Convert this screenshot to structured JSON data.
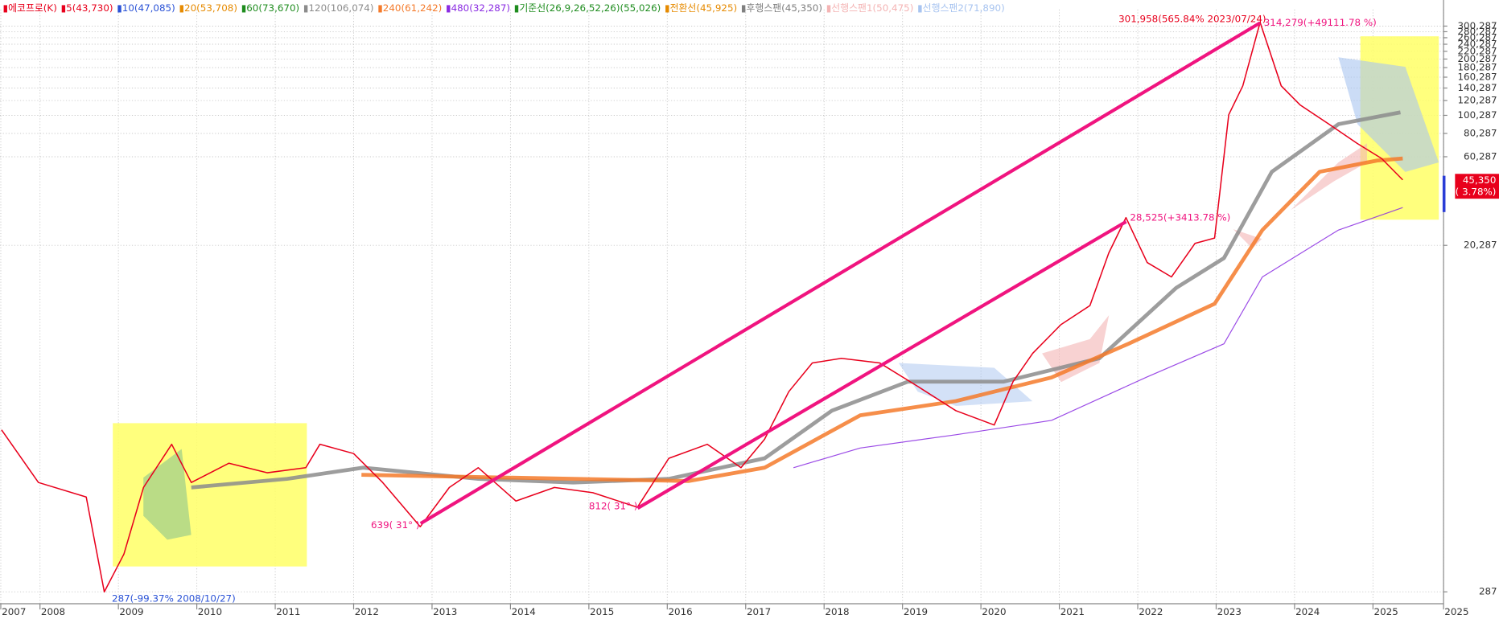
{
  "chart_data": {
    "type": "line",
    "log_scale": true,
    "grid": true,
    "xlim": [
      2007.49,
      2025.9
    ],
    "ylim": [
      248,
      368000
    ],
    "xticks": [
      {
        "value": 2007.5,
        "label": "2007"
      },
      2008,
      2009,
      2010,
      2011,
      2012,
      2013,
      2014,
      2015,
      2016,
      2017,
      2018,
      2019,
      2020,
      2021,
      2022,
      2023,
      2024,
      2025,
      {
        "value": 2025.9,
        "label": "2025"
      }
    ],
    "yticks": [
      {
        "value": 300287,
        "label": "300,287"
      },
      {
        "value": 280287,
        "label": "280,287"
      },
      {
        "value": 260287,
        "label": "260,287"
      },
      {
        "value": 240287,
        "label": "240,287"
      },
      {
        "value": 220287,
        "label": "220,287"
      },
      {
        "value": 200287,
        "label": "200,287"
      },
      {
        "value": 180287,
        "label": "180,287"
      },
      {
        "value": 160287,
        "label": "160,287"
      },
      {
        "value": 140287,
        "label": "140,287"
      },
      {
        "value": 120287,
        "label": "120,287"
      },
      {
        "value": 100287,
        "label": "100,287"
      },
      {
        "value": 80287,
        "label": "80,287"
      },
      {
        "value": 60287,
        "label": "60,287"
      },
      {
        "value": 20287,
        "label": "20,287"
      },
      287
    ],
    "series": [
      {
        "name": "▮에코프로(K)",
        "color": "#e8001c",
        "x": [
          2007.51,
          2007.98,
          2008.59,
          2008.82,
          2009.07,
          2009.32,
          2009.68,
          2009.93,
          2010.41,
          2010.9,
          2011.39,
          2011.57,
          2012.0,
          2012.37,
          2012.85,
          2013.22,
          2013.59,
          2014.07,
          2014.56,
          2015.05,
          2015.62,
          2016.02,
          2016.51,
          2016.94,
          2017.24,
          2017.55,
          2017.85,
          2018.22,
          2018.71,
          2019.2,
          2019.68,
          2020.17,
          2020.41,
          2020.66,
          2021.02,
          2021.39,
          2021.63,
          2021.85,
          2022.12,
          2022.43,
          2022.73,
          2022.98,
          2023.16,
          2023.34,
          2023.56,
          2023.83,
          2024.07,
          2024.44,
          2024.8,
          2025.11,
          2025.38
        ],
        "values": [
          2100,
          1100,
          920,
          287,
          456,
          1035,
          1760,
          1100,
          1395,
          1240,
          1320,
          1760,
          1570,
          1100,
          639,
          1035,
          1320,
          876,
          1035,
          970,
          812,
          1480,
          1760,
          1320,
          1870,
          3360,
          4780,
          5060,
          4780,
          3570,
          2660,
          2230,
          3800,
          5380,
          7650,
          9680,
          18460,
          28525,
          16430,
          13770,
          20770,
          22200,
          101000,
          144000,
          314279,
          144000,
          114000,
          90000,
          71000,
          59000,
          45350
        ]
      },
      {
        "name": "▮120(106,074)",
        "color": "#8c8c8c",
        "x": [
          2009.93,
          2011.15,
          2012.12,
          2013.59,
          2014.8,
          2016.02,
          2017.24,
          2018.1,
          2019.07,
          2020.29,
          2021.51,
          2022.49,
          2023.1,
          2023.71,
          2024.56,
          2025.35
        ],
        "values": [
          1035,
          1150,
          1320,
          1150,
          1100,
          1150,
          1480,
          2660,
          3800,
          3800,
          5060,
          12020,
          17340,
          50100,
          90000,
          104000
        ]
      },
      {
        "name": "▮240(61,242)",
        "color": "#f47a2a",
        "x": [
          2012.1,
          2014.8,
          2016.27,
          2017.24,
          2018.46,
          2019.68,
          2020.9,
          2021.88,
          2022.98,
          2023.59,
          2024.32,
          2025.05,
          2025.38
        ],
        "values": [
          1210,
          1150,
          1120,
          1320,
          2510,
          2990,
          4000,
          6050,
          9900,
          24500,
          50100,
          57500,
          59000
        ]
      },
      {
        "name": "▮480(32,287)",
        "color": "#8a2be2",
        "x": [
          2017.61,
          2018.46,
          2019.68,
          2020.9,
          2022.12,
          2023.1,
          2023.59,
          2024.56,
          2025.38
        ],
        "values": [
          1320,
          1680,
          1980,
          2360,
          4030,
          6050,
          13770,
          24500,
          32287
        ]
      }
    ],
    "other_indicators": [
      {
        "name": "▮5(43,730)",
        "color": "#e8001c"
      },
      {
        "name": "▮10(47,085)",
        "color": "#2a52d6"
      },
      {
        "name": "▮20(53,708)",
        "color": "#e68a00"
      },
      {
        "name": "▮60(73,670)",
        "color": "#1e8c1e"
      },
      {
        "name": "▮기준선(26,9,26,52,26)(55,026)",
        "color": "#1e8c1e"
      },
      {
        "name": "▮전환선(45,925)",
        "color": "#e68a00"
      },
      {
        "name": "▮후행스팬(45,350)",
        "color": "#808080"
      },
      {
        "name": "▮선행스팬1(50,475)",
        "color": "#f4b4b4"
      },
      {
        "name": "▮선행스팬2(71,890)",
        "color": "#a8c4f0"
      }
    ],
    "annotations": {
      "high_date": "301,958(565.84% 2023/07/24)",
      "high": "314,279(+49111.78 %)",
      "mid_high": "28,525(+3413.78 %)",
      "low_2012": "639( 31° )",
      "low_2015": "812( 31° )",
      "low_2008": "287(-99.37% 2008/10/27)"
    },
    "current_price": "45,350",
    "current_change": "( 3.78%)"
  }
}
